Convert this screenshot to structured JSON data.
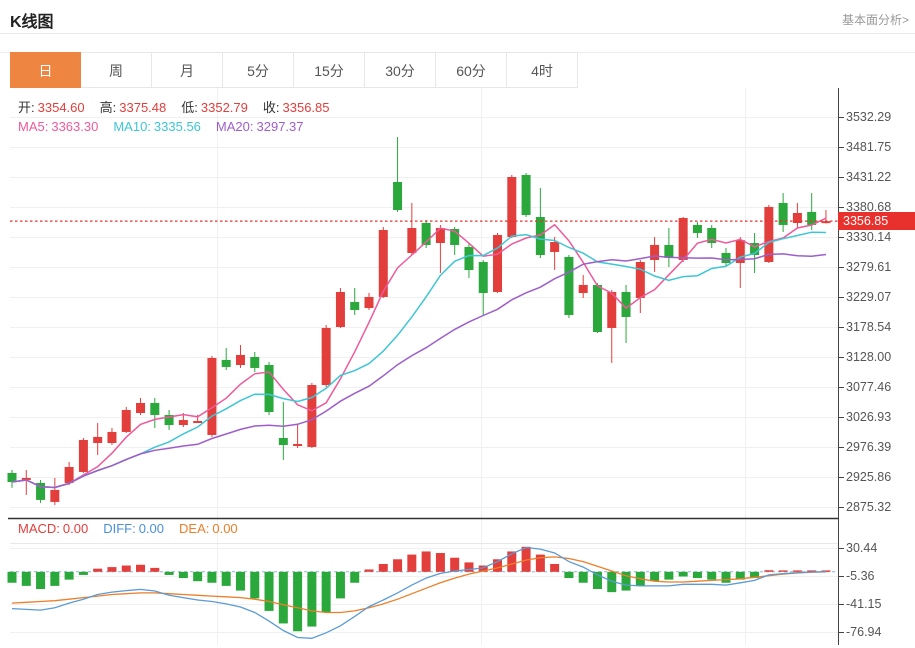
{
  "header": {
    "title": "K线图",
    "link": "基本面分析>"
  },
  "tabs": {
    "items": [
      "日",
      "周",
      "月",
      "5分",
      "15分",
      "30分",
      "60分",
      "4时"
    ],
    "active": "日"
  },
  "ohlc": {
    "items": [
      {
        "label": "开:",
        "value": "3354.60"
      },
      {
        "label": "高:",
        "value": "3375.48"
      },
      {
        "label": "低:",
        "value": "3352.79"
      },
      {
        "label": "收:",
        "value": "3356.85"
      }
    ]
  },
  "ma_row": {
    "items": [
      {
        "label": "MA5:",
        "value": "3363.30",
        "color": "#ee5a9b"
      },
      {
        "label": "MA10:",
        "value": "3335.56",
        "color": "#3ec6d5"
      },
      {
        "label": "MA20:",
        "value": "3297.37",
        "color": "#9e5ec9"
      }
    ]
  },
  "macd_row": {
    "items": [
      {
        "label": "MACD:",
        "value": "0.00",
        "color": "#e23e3b"
      },
      {
        "label": "DIFF:",
        "value": "0.00",
        "color": "#4a90d9"
      },
      {
        "label": "DEA:",
        "value": "0.00",
        "color": "#ee7e28"
      }
    ]
  },
  "price_axis": {
    "labels": [
      "3532.29",
      "3481.75",
      "3431.22",
      "3380.68",
      "3330.14",
      "3279.61",
      "3229.07",
      "3178.54",
      "3128.00",
      "3077.46",
      "3026.93",
      "2976.39",
      "2925.86",
      "2875.32"
    ]
  },
  "macd_axis": {
    "labels": [
      "30.44",
      "-5.36",
      "-41.15",
      "-76.94"
    ]
  },
  "current_price": {
    "label": "3356.85"
  },
  "colors": {
    "up": "#e23e3b",
    "down": "#2aa83c",
    "ma5": "#ee5a9b",
    "ma10": "#3ec6d5",
    "ma20": "#9e5ec9",
    "diff": "#5b9bd5",
    "dea": "#ee7e28",
    "badge": "#e8302c",
    "price_line": "#e8302c",
    "grid": "#f0f0f0",
    "axis": "#444444",
    "zero_dash": "#8ab6e0"
  },
  "chart_data": {
    "type": "candlestick",
    "title": "K线图",
    "interval": "日",
    "legend": [
      "MA5",
      "MA10",
      "MA20",
      "MACD",
      "DIFF",
      "DEA"
    ],
    "price_axis_ticks": [
      3532.29,
      3481.75,
      3431.22,
      3380.68,
      3330.14,
      3279.61,
      3229.07,
      3178.54,
      3128.0,
      3077.46,
      3026.93,
      2976.39,
      2925.86,
      2875.32
    ],
    "current_price": 3356.85,
    "last_candle": {
      "open": 3354.6,
      "high": 3375.48,
      "low": 3352.79,
      "close": 3356.85
    },
    "ma_values": {
      "MA5": 3363.3,
      "MA10": 3335.56,
      "MA20": 3297.37
    },
    "ma_periods": [
      5,
      10,
      20
    ],
    "candles": [
      [
        2932.6,
        2937.7,
        2907.4,
        2917.4
      ],
      [
        2922.5,
        2937.7,
        2895.6,
        2924.2
      ],
      [
        2915.8,
        2920.8,
        2882.1,
        2887.2
      ],
      [
        2883.8,
        2924.2,
        2878.7,
        2904.0
      ],
      [
        2915.8,
        2951.1,
        2912.4,
        2942.7
      ],
      [
        2934.3,
        2991.5,
        2932.6,
        2988.2
      ],
      [
        2983.1,
        3016.8,
        2962.9,
        2993.3
      ],
      [
        2983.1,
        3008.4,
        2979.7,
        3001.7
      ],
      [
        3001.7,
        3043.8,
        3000.0,
        3038.7
      ],
      [
        3033.6,
        3058.9,
        3030.3,
        3050.5
      ],
      [
        3050.5,
        3058.9,
        3008.4,
        3030.3
      ],
      [
        3030.3,
        3038.7,
        3005.0,
        3013.4
      ],
      [
        3013.4,
        3033.6,
        3010.0,
        3021.8
      ],
      [
        3018.4,
        3030.3,
        3016.8,
        3020.1
      ],
      [
        2996.6,
        3129.7,
        2993.3,
        3126.3
      ],
      [
        3123.0,
        3143.2,
        3106.1,
        3111.2
      ],
      [
        3114.5,
        3148.2,
        3109.5,
        3131.4
      ],
      [
        3128.0,
        3136.4,
        3102.7,
        3109.5
      ],
      [
        3114.5,
        3119.6,
        3030.3,
        3035.3
      ],
      [
        2991.5,
        3052.2,
        2954.5,
        2979.7
      ],
      [
        2978.1,
        3013.4,
        2974.7,
        2981.4
      ],
      [
        2976.4,
        3084.2,
        2974.7,
        3080.8
      ],
      [
        3080.8,
        3181.9,
        3077.5,
        3176.9
      ],
      [
        3178.5,
        3244.2,
        3176.9,
        3237.5
      ],
      [
        3220.6,
        3244.2,
        3198.7,
        3207.2
      ],
      [
        3210.5,
        3235.8,
        3207.2,
        3229.1
      ],
      [
        3229.1,
        3347.0,
        3227.4,
        3341.9
      ],
      [
        3422.8,
        3498.6,
        3372.3,
        3375.6
      ],
      [
        3303.2,
        3387.4,
        3299.8,
        3345.3
      ],
      [
        3353.7,
        3358.8,
        3311.6,
        3316.7
      ],
      [
        3320.0,
        3350.4,
        3269.5,
        3345.3
      ],
      [
        3343.6,
        3347.0,
        3299.8,
        3316.7
      ],
      [
        3313.3,
        3320.0,
        3261.1,
        3274.5
      ],
      [
        3288.0,
        3291.4,
        3198.7,
        3235.8
      ],
      [
        3237.5,
        3336.9,
        3235.8,
        3333.5
      ],
      [
        3330.1,
        3434.6,
        3328.5,
        3431.2
      ],
      [
        3434.6,
        3437.9,
        3363.8,
        3367.2
      ],
      [
        3363.8,
        3412.7,
        3294.8,
        3299.8
      ],
      [
        3304.9,
        3330.1,
        3274.5,
        3321.7
      ],
      [
        3296.5,
        3299.8,
        3193.7,
        3198.7
      ],
      [
        3235.8,
        3266.1,
        3227.4,
        3249.3
      ],
      [
        3249.3,
        3252.6,
        3168.4,
        3170.1
      ],
      [
        3176.9,
        3240.9,
        3117.9,
        3237.5
      ],
      [
        3237.5,
        3249.3,
        3151.6,
        3195.4
      ],
      [
        3227.4,
        3291.4,
        3202.1,
        3288.0
      ],
      [
        3291.4,
        3330.1,
        3271.2,
        3316.7
      ],
      [
        3316.7,
        3345.3,
        3279.6,
        3294.8
      ],
      [
        3291.4,
        3363.8,
        3288.0,
        3362.2
      ],
      [
        3350.4,
        3355.4,
        3328.5,
        3336.9
      ],
      [
        3345.3,
        3350.4,
        3311.6,
        3320.0
      ],
      [
        3303.2,
        3311.6,
        3279.6,
        3286.3
      ],
      [
        3286.3,
        3330.1,
        3244.2,
        3325.1
      ],
      [
        3320.0,
        3336.9,
        3269.5,
        3299.8
      ],
      [
        3288.0,
        3384.1,
        3286.3,
        3380.7
      ],
      [
        3387.4,
        3404.3,
        3338.6,
        3350.4
      ],
      [
        3353.7,
        3387.4,
        3345.3,
        3370.6
      ],
      [
        3372.3,
        3404.3,
        3341.9,
        3350.4
      ],
      [
        3354.6,
        3375.48,
        3352.79,
        3356.85
      ]
    ],
    "macd": {
      "macd": 0.0,
      "diff": 0.0,
      "dea": 0.0,
      "axis_ticks": [
        30.44,
        -5.36,
        -41.15,
        -76.94
      ],
      "histogram": [
        -14,
        -18,
        -22,
        -18,
        -10,
        -4,
        4,
        6,
        8,
        9,
        5,
        -4,
        -8,
        -12,
        -14,
        -18,
        -24,
        -34,
        -50,
        -66,
        -76,
        -70,
        -52,
        -34,
        -14,
        3,
        10,
        16,
        22,
        26,
        24,
        18,
        12,
        8,
        16,
        26,
        32,
        22,
        10,
        -8,
        -14,
        -22,
        -26,
        -24,
        -18,
        -12,
        -10,
        -6,
        -8,
        -10,
        -14,
        -10,
        -8,
        2,
        1.5,
        1,
        0.5,
        0
      ],
      "dea_line": [
        -40,
        -39,
        -38,
        -37,
        -35,
        -33,
        -31,
        -29,
        -28,
        -27,
        -27,
        -28,
        -29,
        -30,
        -31,
        -32,
        -33,
        -35,
        -38,
        -42,
        -46,
        -50,
        -52,
        -52,
        -50,
        -46,
        -41,
        -35,
        -28,
        -21,
        -14,
        -8,
        -3,
        1,
        5,
        10,
        15,
        18,
        19,
        17,
        13,
        7,
        1,
        -5,
        -9,
        -12,
        -13,
        -13,
        -12,
        -11,
        -10,
        -9,
        -7,
        -5,
        -3,
        -1.5,
        -0.5,
        0
      ]
    }
  }
}
